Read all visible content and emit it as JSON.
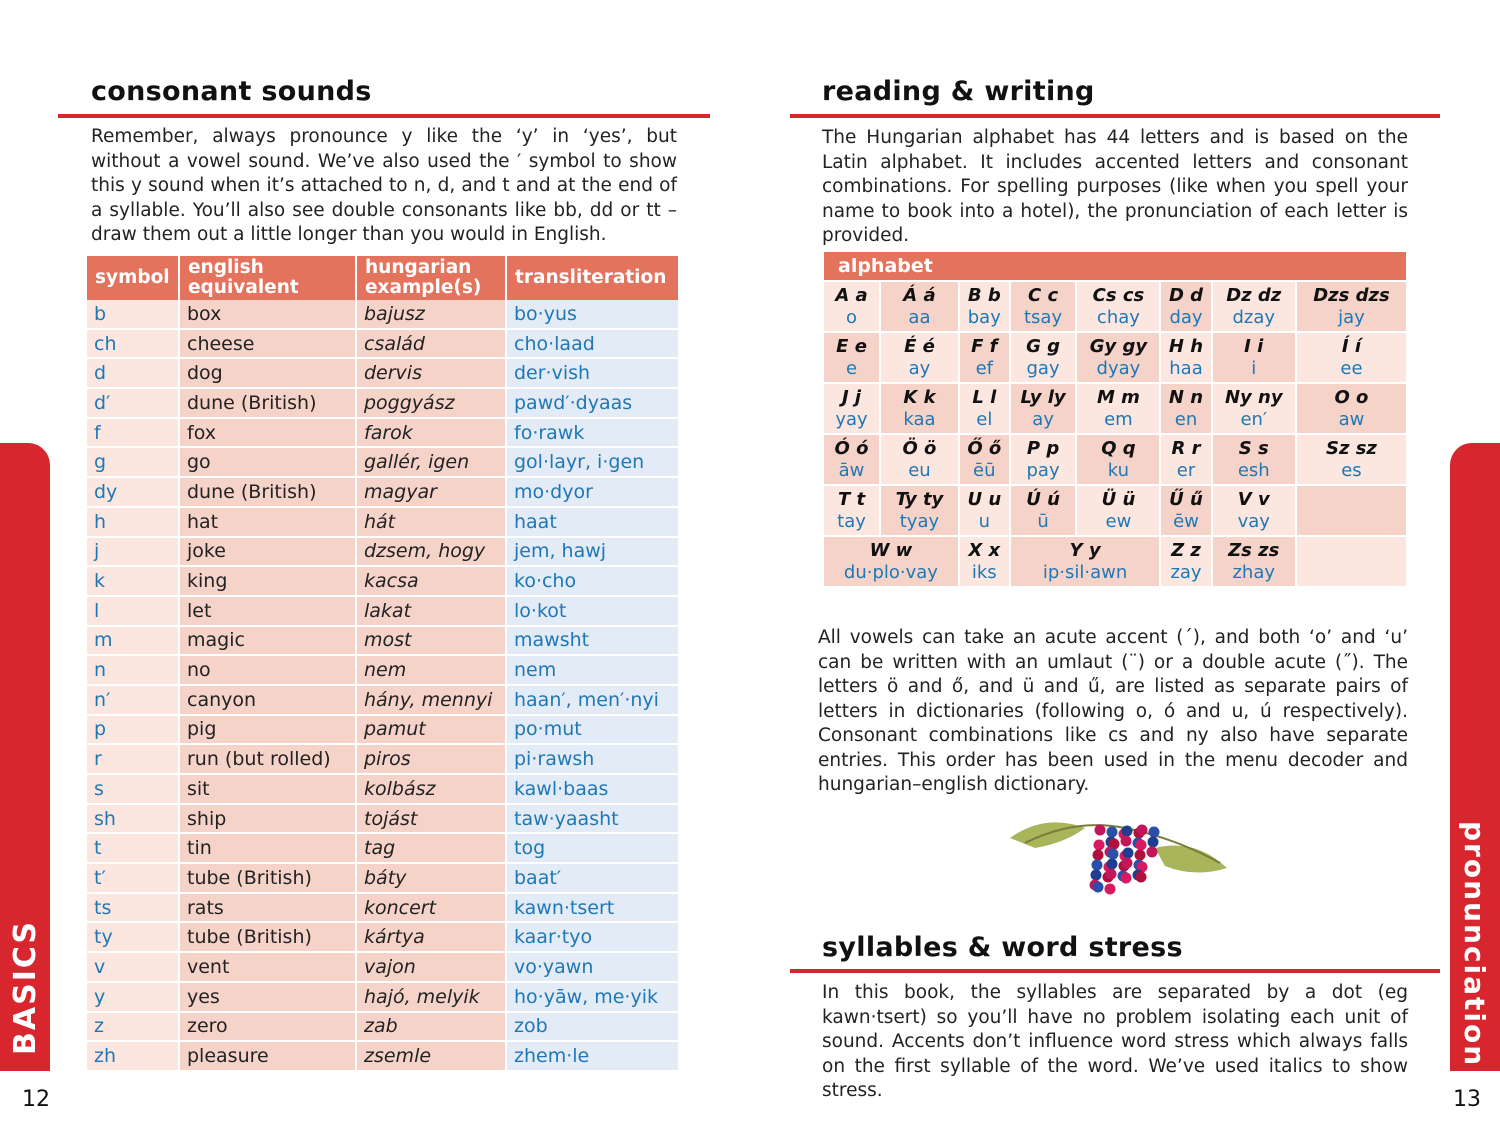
{
  "left": {
    "title": "consonant sounds",
    "intro": "Remember, always pronounce y like the ‘y’ in ‘yes’, but without a vowel sound. We’ve also used the ′ symbol to show this y sound when it’s attached to n, d, and t and at the end of a syllable. You’ll also see double consonants like bb, dd or tt – draw them out a little longer than you would in English.",
    "table": {
      "headers": [
        "symbol",
        "english equivalent",
        "hungarian example(s)",
        "transliteration"
      ],
      "rows": [
        [
          "b",
          "box",
          "bajusz",
          "bo·yus"
        ],
        [
          "ch",
          "cheese",
          "család",
          "cho·laad"
        ],
        [
          "d",
          "dog",
          "dervis",
          "der·vish"
        ],
        [
          "d′",
          "dune (British)",
          "poggyász",
          "pawd′·dyaas"
        ],
        [
          "f",
          "fox",
          "farok",
          "fo·rawk"
        ],
        [
          "g",
          "go",
          "gallér, igen",
          "gol·layr, i·gen"
        ],
        [
          "dy",
          "dune (British)",
          "magyar",
          "mo·dyor"
        ],
        [
          "h",
          "hat",
          "hát",
          "haat"
        ],
        [
          "j",
          "joke",
          "dzsem, hogy",
          "jem, hawj"
        ],
        [
          "k",
          "king",
          "kacsa",
          "ko·cho"
        ],
        [
          "l",
          "let",
          "lakat",
          "lo·kot"
        ],
        [
          "m",
          "magic",
          "most",
          "mawsht"
        ],
        [
          "n",
          "no",
          "nem",
          "nem"
        ],
        [
          "n′",
          "canyon",
          "hány, mennyi",
          "haan′, men′·nyi"
        ],
        [
          "p",
          "pig",
          "pamut",
          "po·mut"
        ],
        [
          "r",
          "run (but rolled)",
          "piros",
          "pi·rawsh"
        ],
        [
          "s",
          "sit",
          "kolbász",
          "kawl·baas"
        ],
        [
          "sh",
          "ship",
          "tojást",
          "taw·yaasht"
        ],
        [
          "t",
          "tin",
          "tag",
          "tog"
        ],
        [
          "t′",
          "tube (British)",
          "báty",
          "baat′"
        ],
        [
          "ts",
          "rats",
          "koncert",
          "kawn·tsert"
        ],
        [
          "ty",
          "tube (British)",
          "kártya",
          "kaar·tyo"
        ],
        [
          "v",
          "vent",
          "vajon",
          "vo·yawn"
        ],
        [
          "y",
          "yes",
          "hajó, melyik",
          "ho·yāw, me·yik"
        ],
        [
          "z",
          "zero",
          "zab",
          "zob"
        ],
        [
          "zh",
          "pleasure",
          "zsemle",
          "zhem·le"
        ]
      ]
    },
    "side_tab": "BASICS",
    "page_number": "12"
  },
  "right": {
    "title": "reading & writing",
    "intro": "The Hungarian alphabet has 44 letters and is based on the Latin alphabet. It includes accented letters and consonant combinations. For spelling purposes (like when you spell your name to book into a hotel), the pronunciation of each letter is provided.",
    "alphabet": {
      "caption": "alphabet",
      "rows": [
        [
          [
            "A a",
            "o"
          ],
          [
            "Á á",
            "aa"
          ],
          [
            "B b",
            "bay"
          ],
          [
            "C c",
            "tsay"
          ],
          [
            "Cs cs",
            "chay"
          ],
          [
            "D d",
            "day"
          ],
          [
            "Dz dz",
            "dzay"
          ],
          [
            "Dzs dzs",
            "jay"
          ]
        ],
        [
          [
            "E e",
            "e"
          ],
          [
            "É é",
            "ay"
          ],
          [
            "F f",
            "ef"
          ],
          [
            "G g",
            "gay"
          ],
          [
            "Gy gy",
            "dyay"
          ],
          [
            "H h",
            "haa"
          ],
          [
            "I i",
            "i"
          ],
          [
            "Í í",
            "ee"
          ]
        ],
        [
          [
            "J j",
            "yay"
          ],
          [
            "K k",
            "kaa"
          ],
          [
            "L l",
            "el"
          ],
          [
            "Ly ly",
            "ay"
          ],
          [
            "M m",
            "em"
          ],
          [
            "N n",
            "en"
          ],
          [
            "Ny ny",
            "en′"
          ],
          [
            "O o",
            "aw"
          ]
        ],
        [
          [
            "Ó ó",
            "āw"
          ],
          [
            "Ö ö",
            "eu"
          ],
          [
            "Ő ő",
            "ēū"
          ],
          [
            "P p",
            "pay"
          ],
          [
            "Q q",
            "ku"
          ],
          [
            "R r",
            "er"
          ],
          [
            "S s",
            "esh"
          ],
          [
            "Sz sz",
            "es"
          ]
        ],
        [
          [
            "T t",
            "tay"
          ],
          [
            "Ty ty",
            "tyay"
          ],
          [
            "U u",
            "u"
          ],
          [
            "Ú ú",
            "ū"
          ],
          [
            "Ü ü",
            "ew"
          ],
          [
            "Ű ű",
            "ēw"
          ],
          [
            "V v",
            "vay"
          ],
          [
            "",
            ""
          ]
        ]
      ],
      "last_row": [
        [
          "W w",
          "du·plo·vay"
        ],
        [
          "X x",
          "iks"
        ],
        [
          "Y y",
          "ip·sil·awn"
        ],
        [
          "Z z",
          "zay"
        ],
        [
          "Zs zs",
          "zhay"
        ],
        [
          "",
          ""
        ]
      ]
    },
    "vowels_text": "All vowels can take an acute accent (´), and both ‘o’ and ‘u’ can be written with an umlaut (¨) or a double acute (˝). The letters ö and ő, and ü and ű, are listed as separate pairs of letters in dictionaries (following o, ó and u, ú respectively). Consonant combinations like cs and ny also have separate entries. This order has been used in the menu decoder and hungarian–english dictionary.",
    "syllables_title": "syllables & word stress",
    "syllables_text": "In this book, the syllables are separated by a dot (eg kawn·tsert) so you’ll have no problem isolating each unit of sound. Accents don’t influence word stress which always falls on the first syllable of the word. We’ve used italics to show stress.",
    "side_tab": "pronunciation",
    "page_number": "13"
  }
}
